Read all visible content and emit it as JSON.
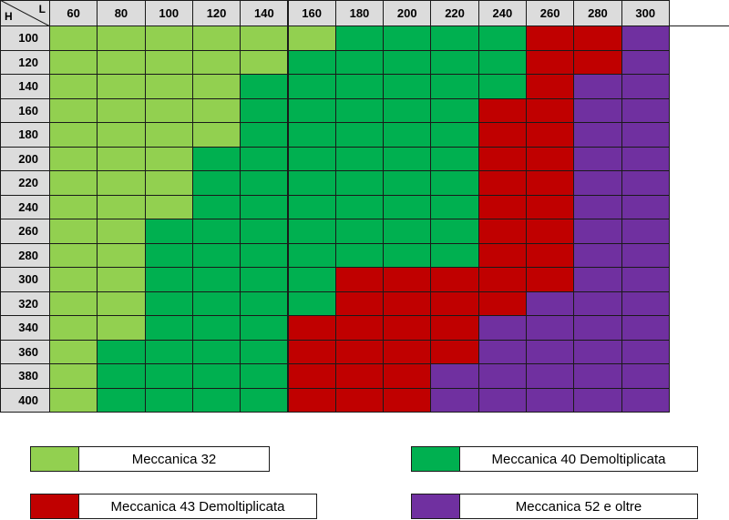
{
  "corner": {
    "row_axis": "H",
    "col_axis": "L"
  },
  "columns": [
    "60",
    "80",
    "100",
    "120",
    "140",
    "160",
    "180",
    "200",
    "220",
    "240",
    "260",
    "280",
    "300"
  ],
  "rows": [
    "100",
    "120",
    "140",
    "160",
    "180",
    "200",
    "220",
    "240",
    "260",
    "280",
    "300",
    "320",
    "340",
    "360",
    "380",
    "400"
  ],
  "colors": {
    "light": "#92d050",
    "green": "#00b050",
    "red": "#c00000",
    "purple": "#7030a0"
  },
  "matrix": [
    [
      "light",
      "light",
      "light",
      "light",
      "light",
      "light",
      "green",
      "green",
      "green",
      "green",
      "red",
      "red",
      "purple"
    ],
    [
      "light",
      "light",
      "light",
      "light",
      "light",
      "green",
      "green",
      "green",
      "green",
      "green",
      "red",
      "red",
      "purple"
    ],
    [
      "light",
      "light",
      "light",
      "light",
      "green",
      "green",
      "green",
      "green",
      "green",
      "green",
      "red",
      "purple",
      "purple"
    ],
    [
      "light",
      "light",
      "light",
      "light",
      "green",
      "green",
      "green",
      "green",
      "green",
      "red",
      "red",
      "purple",
      "purple"
    ],
    [
      "light",
      "light",
      "light",
      "light",
      "green",
      "green",
      "green",
      "green",
      "green",
      "red",
      "red",
      "purple",
      "purple"
    ],
    [
      "light",
      "light",
      "light",
      "green",
      "green",
      "green",
      "green",
      "green",
      "green",
      "red",
      "red",
      "purple",
      "purple"
    ],
    [
      "light",
      "light",
      "light",
      "green",
      "green",
      "green",
      "green",
      "green",
      "green",
      "red",
      "red",
      "purple",
      "purple"
    ],
    [
      "light",
      "light",
      "light",
      "green",
      "green",
      "green",
      "green",
      "green",
      "green",
      "red",
      "red",
      "purple",
      "purple"
    ],
    [
      "light",
      "light",
      "green",
      "green",
      "green",
      "green",
      "green",
      "green",
      "green",
      "red",
      "red",
      "purple",
      "purple"
    ],
    [
      "light",
      "light",
      "green",
      "green",
      "green",
      "green",
      "green",
      "green",
      "green",
      "red",
      "red",
      "purple",
      "purple"
    ],
    [
      "light",
      "light",
      "green",
      "green",
      "green",
      "green",
      "red",
      "red",
      "red",
      "red",
      "red",
      "purple",
      "purple"
    ],
    [
      "light",
      "light",
      "green",
      "green",
      "green",
      "green",
      "red",
      "red",
      "red",
      "red",
      "purple",
      "purple",
      "purple"
    ],
    [
      "light",
      "light",
      "green",
      "green",
      "green",
      "red",
      "red",
      "red",
      "red",
      "purple",
      "purple",
      "purple",
      "purple"
    ],
    [
      "light",
      "green",
      "green",
      "green",
      "green",
      "red",
      "red",
      "red",
      "red",
      "purple",
      "purple",
      "purple",
      "purple"
    ],
    [
      "light",
      "green",
      "green",
      "green",
      "green",
      "red",
      "red",
      "red",
      "purple",
      "purple",
      "purple",
      "purple",
      "purple"
    ],
    [
      "light",
      "green",
      "green",
      "green",
      "green",
      "red",
      "red",
      "red",
      "purple",
      "purple",
      "purple",
      "purple",
      "purple"
    ]
  ],
  "legend": [
    {
      "key": "light",
      "label": "Meccanica 32"
    },
    {
      "key": "green",
      "label": "Meccanica 40 Demoltiplicata"
    },
    {
      "key": "red",
      "label": "Meccanica 43 Demoltiplicata"
    },
    {
      "key": "purple",
      "label": "Meccanica 52 e oltre"
    }
  ]
}
